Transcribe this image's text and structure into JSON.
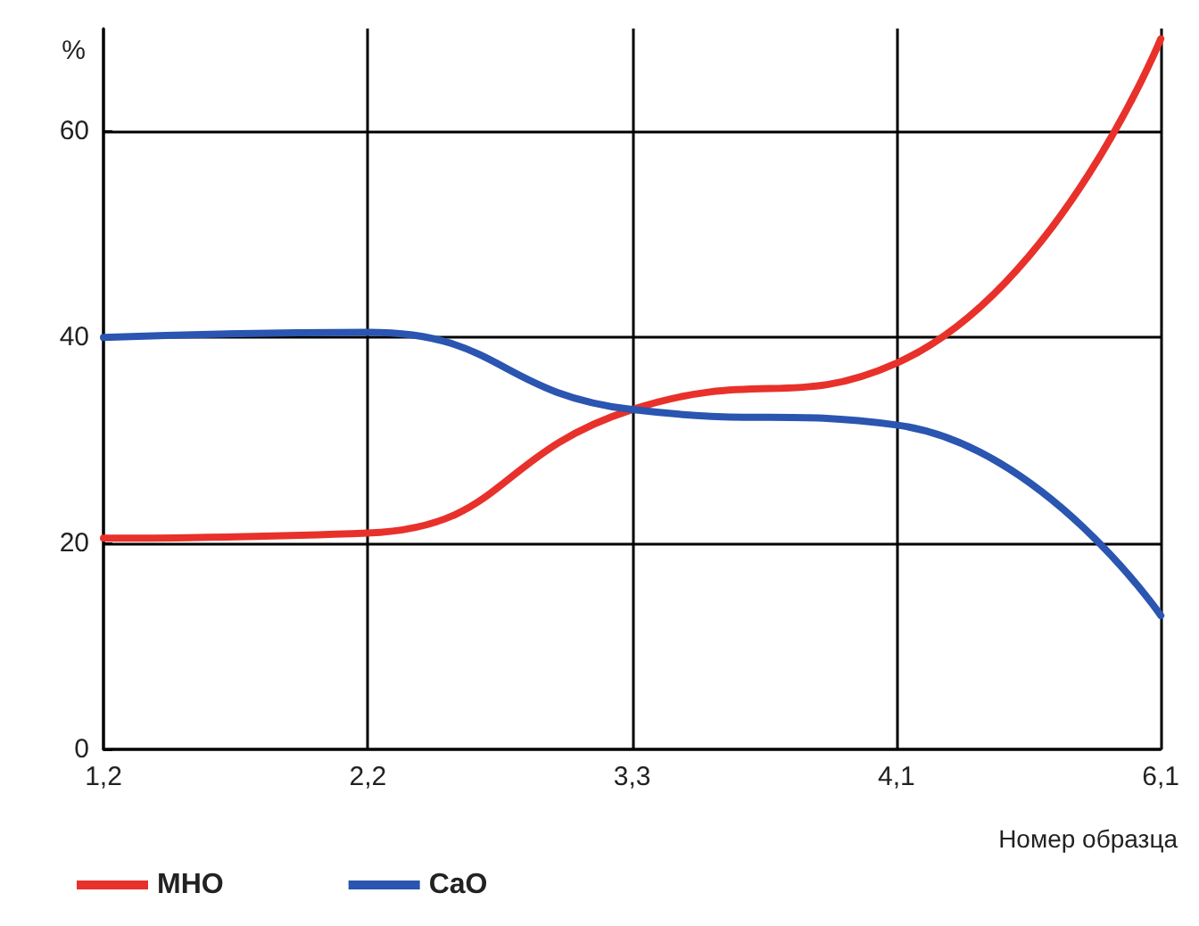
{
  "chart_data": {
    "type": "line",
    "ylabel": "%",
    "xlabel": "Номер образца",
    "categories": [
      "1,2",
      "2,2",
      "3,3",
      "4,1",
      "6,1"
    ],
    "series": [
      {
        "name": "МНО",
        "color": "#e8312a",
        "values": [
          20.5,
          21,
          33,
          37.5,
          69
        ]
      },
      {
        "name": "CaO",
        "color": "#2a55b0",
        "values": [
          40,
          40.5,
          33,
          31.5,
          13
        ]
      }
    ],
    "ylim": [
      0,
      70
    ],
    "yticks": [
      0,
      20,
      40,
      60
    ],
    "grid": true,
    "legend": "bottom left",
    "marker": "none",
    "line_style": "solid"
  }
}
